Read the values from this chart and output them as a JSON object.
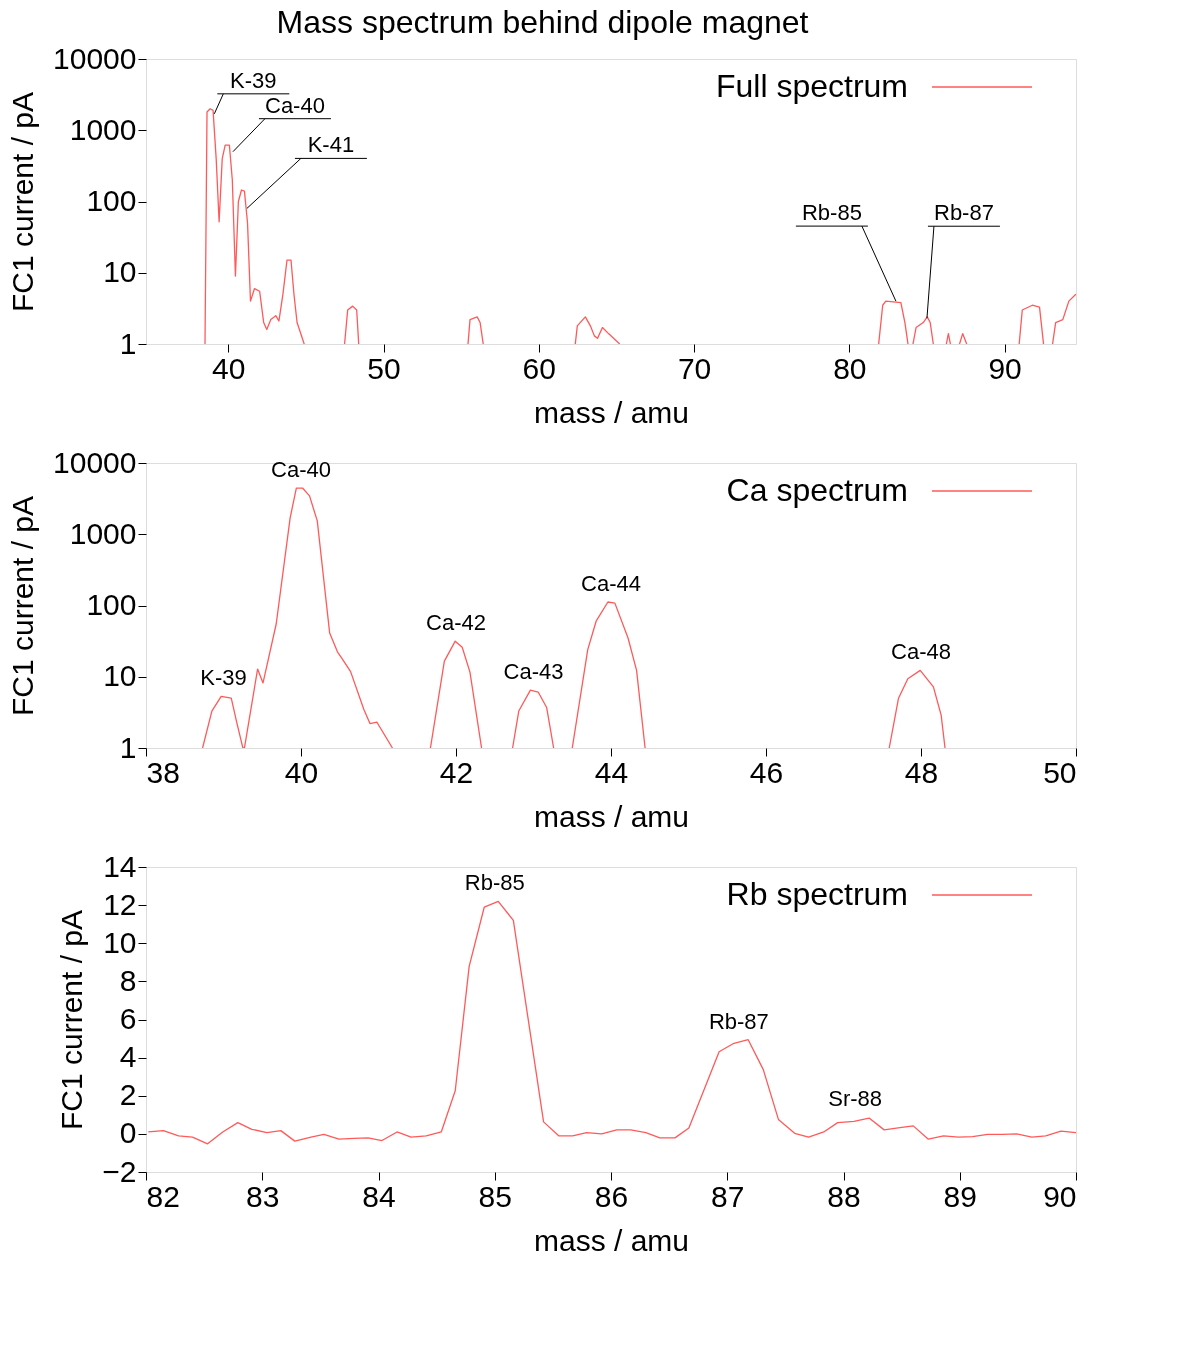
{
  "chart_data": [
    {
      "type": "line",
      "title": "Mass spectrum behind dipole magnet",
      "xlabel": "mass / amu",
      "ylabel": "FC1 current / pA",
      "log": "y",
      "xlim": [
        34.7,
        94.6
      ],
      "xticks": [
        40,
        50,
        60,
        70,
        80,
        90
      ],
      "ylim": [
        1,
        10000
      ],
      "yticks": [
        1,
        10,
        100,
        1000,
        10000
      ],
      "grid": false,
      "legend": "top right",
      "marker": "none",
      "line_style": "solid",
      "series": [
        {
          "name": "Full spectrum",
          "color": "#ff5a5a",
          "x": [
            38.5,
            38.63,
            38.83,
            39.02,
            39.22,
            39.41,
            39.61,
            39.8,
            40.07,
            40.26,
            40.46,
            40.65,
            40.85,
            41.04,
            41.24,
            41.43,
            41.69,
            42.02,
            42.28,
            42.48,
            42.74,
            43.06,
            43.26,
            43.52,
            43.78,
            44.04,
            44.23,
            44.43,
            44.89,
            45.5,
            47.49,
            47.69,
            48.01,
            48.27,
            48.4,
            50.0,
            55.44,
            55.57,
            56.03,
            56.22,
            56.42,
            60.0,
            62.35,
            62.48,
            63.0,
            63.32,
            63.58,
            63.78,
            64.1,
            64.49,
            65.21,
            70.0,
            81.89,
            82.15,
            82.35,
            83.32,
            83.58,
            83.78,
            84.0,
            84.1,
            84.3,
            84.76,
            85.02,
            85.21,
            85.41,
            85.8,
            86.25,
            86.38,
            86.51,
            86.8,
            87.1,
            87.3,
            87.56,
            89.0,
            90.94,
            91.14,
            91.79,
            92.25,
            92.51,
            92.8,
            93.09,
            93.29,
            93.75,
            94.14,
            94.59
          ],
          "values": [
            1,
            1800,
            2000,
            1900,
            400,
            52,
            400,
            620,
            620,
            200,
            9,
            100,
            145,
            140,
            50,
            4,
            6,
            5.5,
            2,
            1.6,
            2.2,
            2.5,
            2.1,
            5,
            15,
            15,
            5,
            2,
            1,
            null,
            1,
            3,
            3.4,
            3,
            1,
            null,
            1,
            2.2,
            2.4,
            2,
            1,
            null,
            1,
            1.8,
            2.4,
            1.8,
            1.3,
            1.2,
            1.7,
            1.4,
            1,
            null,
            1,
            3.5,
            4,
            3.8,
            2,
            1,
            null,
            1,
            1.7,
            2,
            2.4,
            2,
            1,
            null,
            1,
            1.4,
            1,
            null,
            1,
            1.4,
            1,
            null,
            1,
            3,
            3.5,
            3.3,
            1,
            null,
            1,
            2,
            2.2,
            4,
            5
          ]
        }
      ],
      "annotations": [
        {
          "text": "K-39",
          "x": 39.1,
          "y": 1700
        },
        {
          "text": "Ca-40",
          "x": 40.3,
          "y": 500
        },
        {
          "text": "K-41",
          "x": 41.2,
          "y": 80
        },
        {
          "text": "Rb-85",
          "x": 83.0,
          "y": 4
        },
        {
          "text": "Rb-87",
          "x": 85.0,
          "y": 2.3
        }
      ]
    },
    {
      "type": "line",
      "xlabel": "mass / amu",
      "ylabel": "FC1 current / pA",
      "log": "y",
      "xlim": [
        38,
        50
      ],
      "xticks": [
        38,
        40,
        42,
        44,
        46,
        48,
        50
      ],
      "ylim": [
        1,
        10000
      ],
      "yticks": [
        1,
        10,
        100,
        1000,
        10000
      ],
      "grid": false,
      "legend": "top right",
      "marker": "none",
      "line_style": "solid",
      "series": [
        {
          "name": "Ca spectrum",
          "color": "#ff5a5a",
          "x": [
            38.73,
            38.85,
            38.97,
            39.1,
            39.17,
            39.25,
            39.27,
            39.44,
            39.51,
            39.68,
            39.86,
            39.94,
            40.02,
            40.11,
            40.21,
            40.37,
            40.47,
            40.53,
            40.64,
            40.81,
            40.89,
            40.98,
            41.18,
            41.4,
            41.67,
            41.85,
            41.99,
            42.08,
            42.18,
            42.33,
            42.5,
            42.73,
            42.81,
            42.96,
            43.06,
            43.17,
            43.26,
            43.4,
            43.5,
            43.7,
            43.81,
            43.96,
            44.05,
            44.22,
            44.33,
            44.44,
            46.0,
            47.59,
            47.71,
            47.83,
            47.99,
            48.16,
            48.26,
            48.31
          ],
          "values": [
            1,
            3.3,
            5.3,
            5,
            2.3,
            1,
            1,
            12.8,
            8.2,
            55,
            1700,
            4450,
            4450,
            3450,
            1540,
            41,
            22.4,
            18,
            11.8,
            3.5,
            2.2,
            2.3,
            1,
            null,
            1,
            16.6,
            31.6,
            26,
            11.6,
            1,
            null,
            1,
            3.3,
            6.5,
            6.1,
            3.7,
            1,
            null,
            1,
            24,
            61,
            112,
            108,
            35,
            12.3,
            1,
            null,
            1,
            5,
            9.4,
            12.3,
            7.2,
            2.9,
            1
          ]
        }
      ],
      "annotations": [
        {
          "text": "K-39",
          "x": 39,
          "y": 5.3
        },
        {
          "text": "Ca-40",
          "x": 40,
          "y": 4450
        },
        {
          "text": "Ca-42",
          "x": 42,
          "y": 31.6
        },
        {
          "text": "Ca-43",
          "x": 43,
          "y": 6.5
        },
        {
          "text": "Ca-44",
          "x": 44,
          "y": 112
        },
        {
          "text": "Ca-48",
          "x": 48,
          "y": 12.3
        }
      ]
    },
    {
      "type": "line",
      "xlabel": "mass / amu",
      "ylabel": "FC1 current / pA",
      "xlim": [
        82,
        90
      ],
      "xticks": [
        82,
        83,
        84,
        85,
        86,
        87,
        88,
        89,
        90
      ],
      "ylim": [
        -2,
        14
      ],
      "yticks": [
        -2,
        0,
        2,
        4,
        6,
        8,
        10,
        12,
        14
      ],
      "grid": false,
      "legend": "top right",
      "marker": "none",
      "line_style": "solid",
      "series": [
        {
          "name": "Rb spectrum",
          "color": "#ff5a5a",
          "x": [
            82.02,
            82.15,
            82.28,
            82.4,
            82.53,
            82.66,
            82.79,
            82.91,
            83.04,
            83.16,
            83.28,
            83.42,
            83.53,
            83.66,
            83.79,
            83.91,
            84.03,
            84.16,
            84.28,
            84.41,
            84.54,
            84.66,
            84.78,
            84.91,
            85.03,
            85.16,
            85.42,
            85.55,
            85.67,
            85.79,
            85.92,
            86.05,
            86.17,
            86.3,
            86.42,
            86.55,
            86.67,
            86.93,
            87.05,
            87.18,
            87.31,
            87.44,
            87.58,
            87.7,
            87.83,
            87.95,
            88.09,
            88.22,
            88.35,
            88.47,
            88.6,
            88.73,
            88.86,
            88.99,
            89.11,
            89.24,
            89.37,
            89.49,
            89.62,
            89.74,
            89.87,
            90.0
          ],
          "values": [
            0.1,
            0.17,
            -0.1,
            -0.17,
            -0.52,
            0.1,
            0.59,
            0.24,
            0.07,
            0.17,
            -0.38,
            -0.17,
            -0.03,
            -0.28,
            -0.24,
            -0.21,
            -0.35,
            0.1,
            -0.17,
            -0.1,
            0.1,
            2.26,
            8.79,
            11.9,
            12.2,
            11.2,
            0.63,
            -0.1,
            -0.1,
            0.07,
            0,
            0.21,
            0.21,
            0.07,
            -0.21,
            -0.21,
            0.31,
            4.31,
            4.73,
            4.94,
            3.37,
            0.76,
            0.03,
            -0.17,
            0.1,
            0.59,
            0.66,
            0.83,
            0.21,
            0.31,
            0.42,
            -0.28,
            -0.1,
            -0.17,
            -0.14,
            -0.03,
            -0.03,
            0,
            -0.17,
            -0.1,
            0.14,
            0.07
          ]
        }
      ],
      "annotations": [
        {
          "text": "Rb-85",
          "x": 85.0,
          "y": 12.2
        },
        {
          "text": "Rb-87",
          "x": 87.1,
          "y": 4.94
        },
        {
          "text": "Sr-88",
          "x": 88.1,
          "y": 0.9
        }
      ]
    }
  ]
}
